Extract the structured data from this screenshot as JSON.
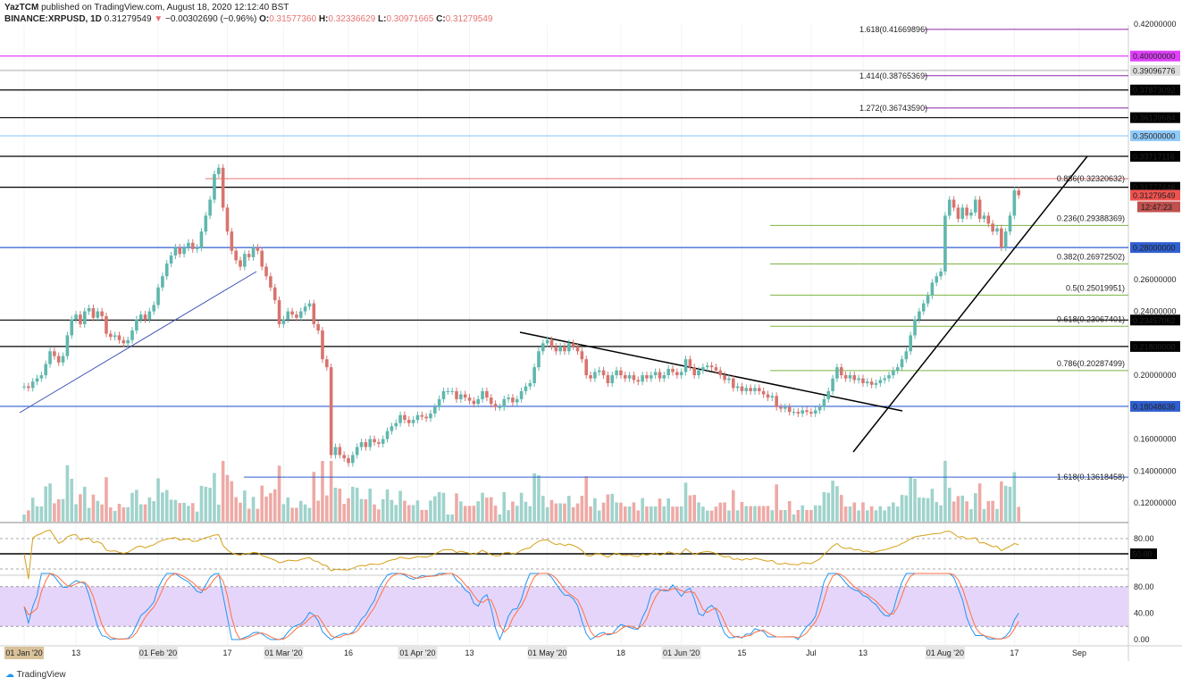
{
  "header": {
    "publisher": "YazTCM",
    "published": "published on TradingView.com, August 18, 2020 12:12:40 BST",
    "symbol": "BINANCE:XRPUSD, 1D",
    "last": "0.31279549",
    "change": "−0.00302690 (−0.96%)",
    "o": "0.31577360",
    "h": "0.32336629",
    "l": "0.30971665",
    "c": "0.31279549"
  },
  "brand": "TradingView",
  "colors": {
    "up": "#5fb7ad",
    "down": "#d8746e",
    "vol_up": "#9fd3cc",
    "vol_down": "#eeaaa6"
  },
  "chart_data": {
    "type": "candlestick",
    "start_date": "2020-01-01",
    "closes": [
      0.193,
      0.192,
      0.196,
      0.198,
      0.2,
      0.207,
      0.215,
      0.212,
      0.208,
      0.212,
      0.225,
      0.235,
      0.238,
      0.232,
      0.24,
      0.242,
      0.236,
      0.24,
      0.237,
      0.226,
      0.224,
      0.225,
      0.222,
      0.22,
      0.222,
      0.228,
      0.235,
      0.238,
      0.235,
      0.24,
      0.244,
      0.255,
      0.262,
      0.27,
      0.275,
      0.28,
      0.276,
      0.28,
      0.283,
      0.279,
      0.28,
      0.29,
      0.3,
      0.31,
      0.326,
      0.33,
      0.305,
      0.29,
      0.278,
      0.272,
      0.268,
      0.276,
      0.274,
      0.28,
      0.278,
      0.268,
      0.262,
      0.255,
      0.247,
      0.232,
      0.235,
      0.24,
      0.238,
      0.236,
      0.24,
      0.243,
      0.245,
      0.232,
      0.228,
      0.21,
      0.205,
      0.15,
      0.155,
      0.15,
      0.148,
      0.145,
      0.15,
      0.155,
      0.158,
      0.155,
      0.16,
      0.158,
      0.157,
      0.16,
      0.165,
      0.168,
      0.17,
      0.175,
      0.172,
      0.17,
      0.172,
      0.175,
      0.174,
      0.173,
      0.176,
      0.18,
      0.185,
      0.19,
      0.19,
      0.19,
      0.185,
      0.188,
      0.186,
      0.184,
      0.182,
      0.185,
      0.19,
      0.186,
      0.182,
      0.18,
      0.18,
      0.185,
      0.186,
      0.183,
      0.185,
      0.19,
      0.193,
      0.195,
      0.205,
      0.215,
      0.22,
      0.222,
      0.218,
      0.215,
      0.218,
      0.215,
      0.22,
      0.218,
      0.215,
      0.21,
      0.2,
      0.198,
      0.202,
      0.203,
      0.2,
      0.195,
      0.2,
      0.203,
      0.2,
      0.198,
      0.2,
      0.197,
      0.196,
      0.2,
      0.198,
      0.2,
      0.202,
      0.198,
      0.2,
      0.204,
      0.202,
      0.2,
      0.202,
      0.21,
      0.205,
      0.2,
      0.203,
      0.205,
      0.206,
      0.205,
      0.203,
      0.2,
      0.197,
      0.198,
      0.192,
      0.193,
      0.19,
      0.192,
      0.19,
      0.192,
      0.19,
      0.188,
      0.186,
      0.187,
      0.18,
      0.179,
      0.18,
      0.177,
      0.177,
      0.176,
      0.178,
      0.177,
      0.176,
      0.178,
      0.18,
      0.185,
      0.19,
      0.198,
      0.205,
      0.2,
      0.198,
      0.2,
      0.197,
      0.198,
      0.195,
      0.196,
      0.194,
      0.195,
      0.197,
      0.198,
      0.2,
      0.203,
      0.205,
      0.21,
      0.215,
      0.225,
      0.235,
      0.24,
      0.245,
      0.25,
      0.258,
      0.262,
      0.265,
      0.3,
      0.31,
      0.305,
      0.298,
      0.305,
      0.3,
      0.302,
      0.31,
      0.298,
      0.3,
      0.295,
      0.29,
      0.292,
      0.28,
      0.29,
      0.3,
      0.3158,
      0.3128
    ],
    "ylim": [
      0.11,
      0.43
    ],
    "y_ticks": [
      "0.42000000",
      "0.26000000",
      "0.24000000",
      "0.20000000",
      "0.16000000",
      "0.14000000",
      "0.12000000"
    ],
    "x_ticks": [
      {
        "label": "01 Jan '20",
        "day": 0
      },
      {
        "label": "13",
        "day": 12
      },
      {
        "label": "01 Feb '20",
        "day": 31
      },
      {
        "label": "17",
        "day": 47
      },
      {
        "label": "01 Mar '20",
        "day": 60
      },
      {
        "label": "16",
        "day": 75
      },
      {
        "label": "01 Apr '20",
        "day": 91
      },
      {
        "label": "13",
        "day": 103
      },
      {
        "label": "01 May '20",
        "day": 121
      },
      {
        "label": "18",
        "day": 138
      },
      {
        "label": "01 Jun '20",
        "day": 152
      },
      {
        "label": "15",
        "day": 166
      },
      {
        "label": "Jul",
        "day": 182
      },
      {
        "label": "13",
        "day": 194
      },
      {
        "label": "01 Aug '20",
        "day": 213
      },
      {
        "label": "17",
        "day": 229
      },
      {
        "label": "Sep",
        "day": 244
      }
    ],
    "levels": [
      {
        "price": 0.4,
        "label": "0.40000000",
        "color": "#e040fb",
        "badge": "#e040fb"
      },
      {
        "price": 0.39096776,
        "label": "0.39096776",
        "color": "#bbbbbb",
        "badge": "#dddddd"
      },
      {
        "price": 0.37873092,
        "label": "0.37873092",
        "color": "#000000",
        "badge": "#000000"
      },
      {
        "price": 0.36139684,
        "label": "0.36139684",
        "color": "#000000",
        "badge": "#000000"
      },
      {
        "price": 0.35,
        "label": "0.35000000",
        "color": "#90caf9",
        "badge": "#90caf9"
      },
      {
        "price": 0.33717116,
        "label": "0.33717116",
        "color": "#000000",
        "badge": "#000000"
      },
      {
        "price": 0.31777446,
        "label": "0.31777446",
        "color": "#000000",
        "badge": "#000000"
      },
      {
        "price": 0.28,
        "label": "0.28000000",
        "color": "#2f5fd0",
        "badge": "#2f5fd0"
      },
      {
        "price": 0.23457062,
        "label": "0.23457062",
        "color": "#000000",
        "badge": "#000000"
      },
      {
        "price": 0.218,
        "label": "0.21800000",
        "color": "#000000",
        "badge": "#000000"
      },
      {
        "price": 0.18048636,
        "label": "0.18048636",
        "color": "#2f5fd0",
        "badge": "#2f5fd0"
      }
    ],
    "fib_ext": [
      {
        "label": "1.618(0.41669896)",
        "price": 0.41669896
      },
      {
        "label": "1.414(0.38765369)",
        "price": 0.38765369
      },
      {
        "label": "1.272(0.36743590)",
        "price": 0.3674359
      }
    ],
    "fib_ret": [
      {
        "label": "0.236(0.29388369)",
        "price": 0.29388369
      },
      {
        "label": "0.382(0.26972502)",
        "price": 0.26972502
      },
      {
        "label": "0.5(0.25019951)",
        "price": 0.25019951
      },
      {
        "label": "0.618(0.23067401)",
        "price": 0.23067401
      },
      {
        "label": "0.786(0.20287499)",
        "price": 0.20287499
      }
    ],
    "fib_886": {
      "label": "0.886(0.32320632)",
      "price": 0.32320632
    },
    "fib_lower": {
      "label": "1.618(0.13618458)",
      "price": 0.13618458
    },
    "last_price_label": "0.31279549",
    "countdown": "12:47:23",
    "rsi": {
      "levels": [
        "80.00",
        "50.00"
      ]
    },
    "stoch": {
      "levels": [
        "80.00",
        "40.00",
        "0.00"
      ]
    }
  }
}
